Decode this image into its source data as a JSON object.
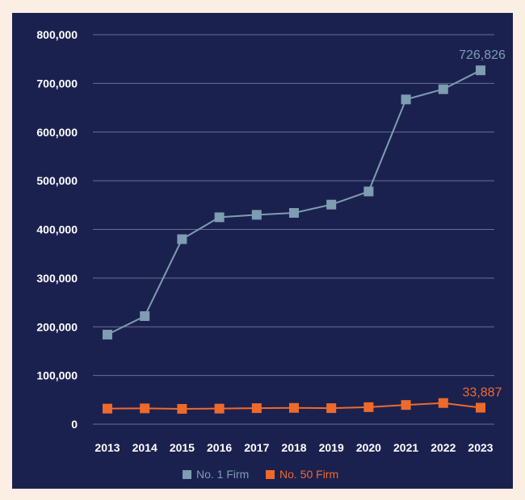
{
  "chart_data": {
    "type": "line",
    "title": "",
    "xlabel": "",
    "ylabel": "",
    "ylim": [
      0,
      800000
    ],
    "yticks": [
      0,
      100000,
      200000,
      300000,
      400000,
      500000,
      600000,
      700000,
      800000
    ],
    "ytick_labels": [
      "0",
      "100,000",
      "200,000",
      "300,000",
      "400,000",
      "500,000",
      "600,000",
      "700,000",
      "800,000"
    ],
    "x": [
      "2013",
      "2014",
      "2015",
      "2016",
      "2017",
      "2018",
      "2019",
      "2020",
      "2021",
      "2022",
      "2023"
    ],
    "grid": true,
    "legend_position": "bottom",
    "series": [
      {
        "name": "No. 1 Firm",
        "color": "#7d9db1",
        "values": [
          184000,
          222000,
          380000,
          425000,
          430000,
          434000,
          451000,
          478000,
          667000,
          688000,
          726826
        ],
        "end_label": "726,826"
      },
      {
        "name": "No. 50 Firm",
        "color": "#ee6a2b",
        "values": [
          32000,
          32500,
          31500,
          32000,
          33000,
          33500,
          33000,
          35000,
          39500,
          43500,
          33887
        ],
        "end_label": "33,887"
      }
    ]
  }
}
